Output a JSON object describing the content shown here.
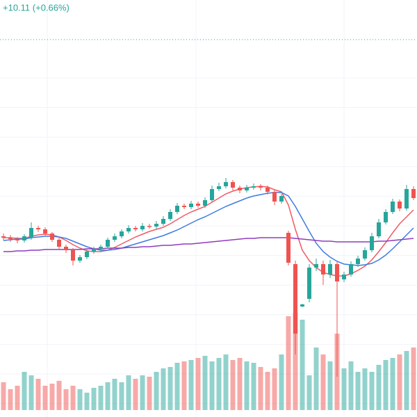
{
  "chart_data": {
    "type": "candlestick",
    "change_label": "+10.11 (+0.66%)",
    "up_color": "#26a69a",
    "down_color": "#ef5350",
    "ylim": [
      0,
      600
    ],
    "volume_ylim": [
      0,
      600
    ],
    "open": [
      260,
      258,
      256,
      254,
      258,
      272,
      270,
      264,
      255,
      245,
      240,
      225,
      230,
      238,
      242,
      245,
      255,
      260,
      267,
      272,
      270,
      275,
      274,
      278,
      285,
      295,
      304,
      302,
      307,
      304,
      312,
      328,
      332,
      338,
      330,
      326,
      330,
      332,
      330,
      324,
      310,
      265,
      220,
      159,
      170,
      215,
      220,
      205,
      220,
      198,
      205,
      220,
      228,
      240,
      260,
      280,
      295,
      310,
      300,
      328
    ],
    "high": [
      264,
      262,
      259,
      263,
      280,
      275,
      273,
      266,
      258,
      248,
      243,
      233,
      241,
      245,
      248,
      258,
      264,
      270,
      276,
      275,
      279,
      278,
      282,
      289,
      299,
      308,
      307,
      311,
      310,
      316,
      333,
      337,
      344,
      341,
      333,
      334,
      336,
      335,
      333,
      327,
      321,
      268,
      225,
      163,
      220,
      228,
      225,
      226,
      223,
      209,
      224,
      232,
      244,
      265,
      285,
      299,
      314,
      313,
      334,
      332
    ],
    "low": [
      254,
      252,
      250,
      251,
      255,
      266,
      261,
      252,
      242,
      236,
      218,
      222,
      227,
      235,
      238,
      242,
      252,
      257,
      264,
      267,
      267,
      271,
      271,
      275,
      282,
      292,
      299,
      299,
      301,
      301,
      309,
      325,
      329,
      326,
      322,
      323,
      327,
      326,
      320,
      305,
      307,
      218,
      90,
      158,
      165,
      210,
      190,
      200,
      58,
      194,
      202,
      216,
      225,
      237,
      257,
      277,
      292,
      296,
      297,
      312
    ],
    "close": [
      258,
      256,
      254,
      260,
      272,
      270,
      264,
      255,
      245,
      240,
      225,
      230,
      238,
      242,
      245,
      255,
      260,
      267,
      272,
      270,
      275,
      274,
      278,
      285,
      295,
      304,
      302,
      307,
      304,
      312,
      328,
      332,
      338,
      330,
      326,
      330,
      332,
      330,
      324,
      310,
      318,
      222,
      120,
      162,
      215,
      220,
      205,
      220,
      195,
      205,
      220,
      228,
      240,
      260,
      280,
      295,
      310,
      300,
      328,
      315
    ],
    "volume": [
      40,
      30,
      35,
      55,
      50,
      45,
      35,
      38,
      42,
      30,
      35,
      30,
      25,
      32,
      35,
      40,
      45,
      40,
      50,
      45,
      50,
      48,
      55,
      60,
      62,
      68,
      70,
      72,
      75,
      78,
      70,
      75,
      80,
      72,
      75,
      70,
      68,
      62,
      55,
      60,
      80,
      135,
      140,
      130,
      50,
      90,
      80,
      70,
      110,
      60,
      70,
      55,
      60,
      55,
      65,
      72,
      75,
      80,
      85,
      90
    ],
    "series": [
      {
        "color": "#f05a63",
        "values": [
          258,
          258,
          257,
          257,
          260,
          262,
          263,
          262,
          259,
          254,
          248,
          243,
          239,
          238,
          238,
          240,
          244,
          249,
          254,
          259,
          263,
          267,
          270,
          273,
          278,
          284,
          290,
          295,
          299,
          303,
          309,
          315,
          321,
          325,
          328,
          330,
          331,
          332,
          331,
          327,
          324,
          305,
          270,
          240,
          225,
          215,
          208,
          205,
          203,
          203,
          206,
          211,
          217,
          226,
          238,
          251,
          265,
          278,
          288,
          298
        ]
      },
      {
        "color": "#3d7be0",
        "values": [
          254,
          255,
          256,
          256,
          258,
          259,
          260,
          260,
          259,
          257,
          253,
          249,
          245,
          242,
          240,
          240,
          241,
          243,
          246,
          249,
          252,
          255,
          258,
          261,
          265,
          269,
          274,
          279,
          284,
          288,
          293,
          298,
          303,
          307,
          311,
          315,
          318,
          320,
          322,
          323,
          323,
          318,
          303,
          285,
          267,
          250,
          238,
          230,
          224,
          220,
          219,
          218,
          219,
          221,
          226,
          233,
          242,
          252,
          262,
          272
        ]
      },
      {
        "color": "#8e3bbf",
        "values": [
          238,
          238,
          239,
          239,
          240,
          240,
          241,
          241,
          241,
          241,
          241,
          241,
          242,
          242,
          242,
          243,
          243,
          243,
          244,
          244,
          245,
          245,
          246,
          247,
          247,
          248,
          249,
          249,
          250,
          251,
          252,
          253,
          254,
          255,
          256,
          257,
          257,
          258,
          258,
          258,
          258,
          258,
          257,
          256,
          255,
          254,
          253,
          253,
          252,
          252,
          252,
          252,
          252,
          252,
          253,
          253,
          254,
          255,
          256,
          257
        ]
      }
    ]
  }
}
